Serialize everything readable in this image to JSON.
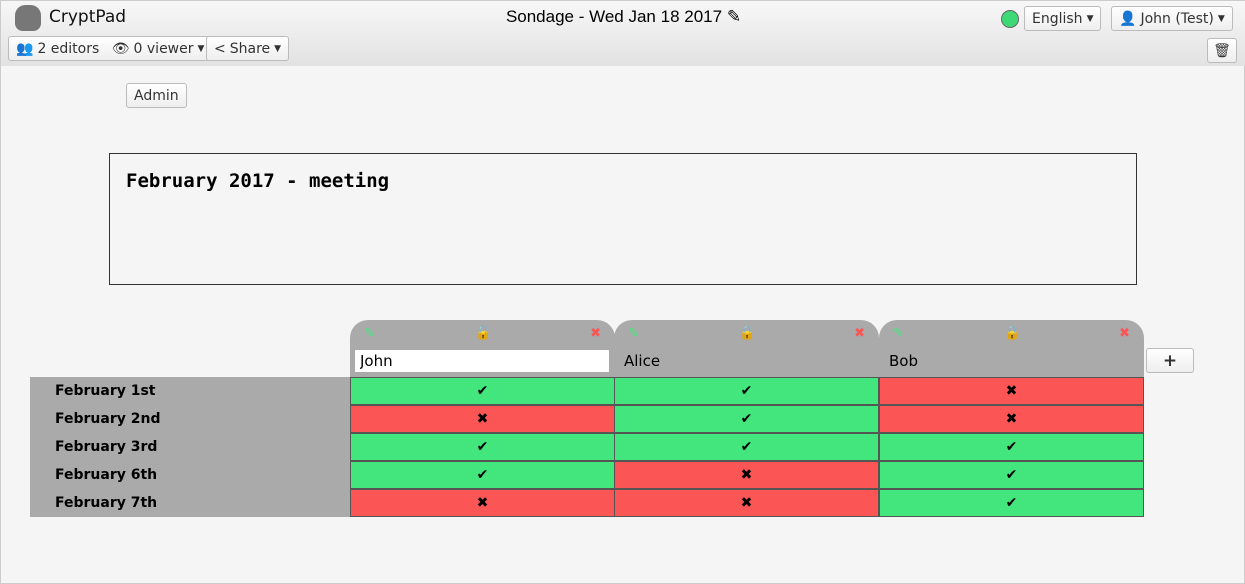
{
  "app": {
    "name": "CryptPad",
    "title": "Sondage - Wed Jan 18 2017"
  },
  "toolbar": {
    "editors": "2 editors",
    "viewers": "0 viewer",
    "share": "Share",
    "language": "English",
    "user": "John (Test)",
    "status_color": "#3ed976"
  },
  "admin_label": "Admin",
  "description": "February 2017 - meeting",
  "colors": {
    "yes": "#43e67d",
    "no": "#fb5555",
    "header": "#aaaaaa"
  },
  "columns": [
    {
      "name": "John",
      "locked": false,
      "editing": true,
      "votes": [
        "yes",
        "no",
        "yes",
        "yes",
        "no"
      ]
    },
    {
      "name": "Alice",
      "locked": true,
      "editing": false,
      "votes": [
        "yes",
        "yes",
        "yes",
        "no",
        "no"
      ]
    },
    {
      "name": "Bob",
      "locked": true,
      "editing": false,
      "votes": [
        "no",
        "no",
        "yes",
        "yes",
        "yes"
      ]
    }
  ],
  "rows": [
    "February 1st",
    "February 2nd",
    "February 3rd",
    "February 6th",
    "February 7th"
  ],
  "add_column_label": "+"
}
